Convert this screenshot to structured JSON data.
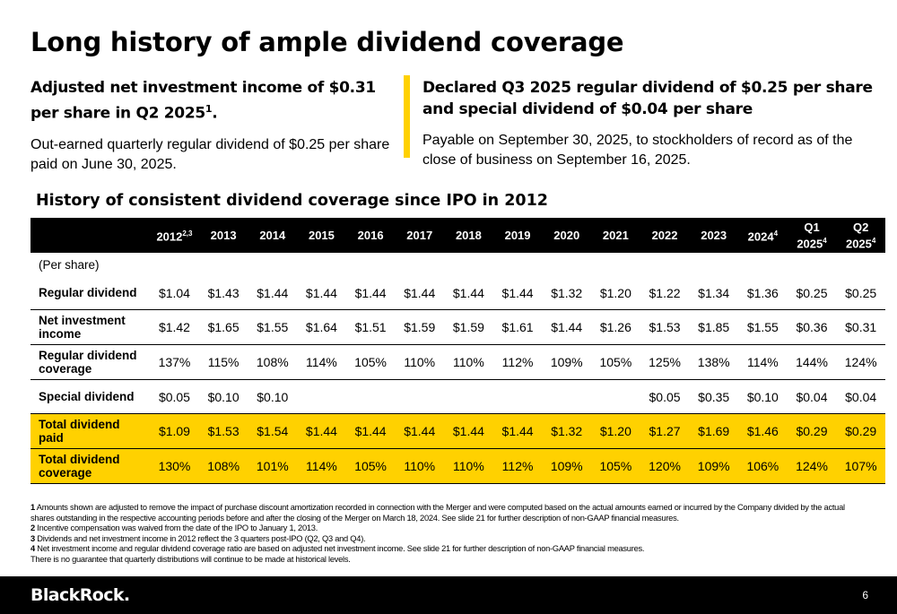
{
  "title": "Long history of ample dividend coverage",
  "left_callout": {
    "heading": "Adjusted net investment income of $0.31 per share in Q2 2025",
    "heading_sup": "1",
    "heading_end": ".",
    "body": "Out-earned quarterly regular dividend of $0.25 per share paid on June 30, 2025."
  },
  "right_callout": {
    "heading": "Declared Q3 2025 regular dividend of $0.25 per share and special dividend of $0.04 per share",
    "body": "Payable on September 30, 2025, to stockholders of record as of the close of business on September 16, 2025."
  },
  "section_title": "History of consistent dividend coverage since IPO in 2012",
  "table": {
    "columns": [
      {
        "label": "2012",
        "sup": "2,3"
      },
      {
        "label": "2013",
        "sup": ""
      },
      {
        "label": "2014",
        "sup": ""
      },
      {
        "label": "2015",
        "sup": ""
      },
      {
        "label": "2016",
        "sup": ""
      },
      {
        "label": "2017",
        "sup": ""
      },
      {
        "label": "2018",
        "sup": ""
      },
      {
        "label": "2019",
        "sup": ""
      },
      {
        "label": "2020",
        "sup": ""
      },
      {
        "label": "2021",
        "sup": ""
      },
      {
        "label": "2022",
        "sup": ""
      },
      {
        "label": "2023",
        "sup": ""
      },
      {
        "label": "2024",
        "sup": "4"
      },
      {
        "label": "Q1 2025",
        "sup": "4"
      },
      {
        "label": "Q2 2025",
        "sup": "4"
      }
    ],
    "unit_label": "(Per share)",
    "rows": [
      {
        "label": "Regular dividend",
        "highlight": false,
        "values": [
          "$1.04",
          "$1.43",
          "$1.44",
          "$1.44",
          "$1.44",
          "$1.44",
          "$1.44",
          "$1.44",
          "$1.32",
          "$1.20",
          "$1.22",
          "$1.34",
          "$1.36",
          "$0.25",
          "$0.25"
        ]
      },
      {
        "label": "Net investment income",
        "highlight": false,
        "values": [
          "$1.42",
          "$1.65",
          "$1.55",
          "$1.64",
          "$1.51",
          "$1.59",
          "$1.59",
          "$1.61",
          "$1.44",
          "$1.26",
          "$1.53",
          "$1.85",
          "$1.55",
          "$0.36",
          "$0.31"
        ]
      },
      {
        "label": "Regular dividend coverage",
        "highlight": false,
        "values": [
          "137%",
          "115%",
          "108%",
          "114%",
          "105%",
          "110%",
          "110%",
          "112%",
          "109%",
          "105%",
          "125%",
          "138%",
          "114%",
          "144%",
          "124%"
        ]
      },
      {
        "label": "Special dividend",
        "highlight": false,
        "values": [
          "$0.05",
          "$0.10",
          "$0.10",
          "",
          "",
          "",
          "",
          "",
          "",
          "",
          "$0.05",
          "$0.35",
          "$0.10",
          "$0.04",
          "$0.04"
        ]
      },
      {
        "label": "Total dividend paid",
        "highlight": true,
        "values": [
          "$1.09",
          "$1.53",
          "$1.54",
          "$1.44",
          "$1.44",
          "$1.44",
          "$1.44",
          "$1.44",
          "$1.32",
          "$1.20",
          "$1.27",
          "$1.69",
          "$1.46",
          "$0.29",
          "$0.29"
        ]
      },
      {
        "label": "Total dividend coverage",
        "highlight": true,
        "values": [
          "130%",
          "108%",
          "101%",
          "114%",
          "105%",
          "110%",
          "110%",
          "112%",
          "109%",
          "105%",
          "120%",
          "109%",
          "106%",
          "124%",
          "107%"
        ]
      }
    ]
  },
  "footnotes": [
    {
      "num": "1",
      "text": "Amounts shown are adjusted to remove the impact of purchase discount amortization recorded in connection with the Merger and were computed based on the actual amounts earned or incurred by the Company divided by the actual shares outstanding in the respective accounting periods before and after the closing of the Merger on March 18, 2024. See slide 21 for further description of non-GAAP financial measures."
    },
    {
      "num": "2",
      "text": "Incentive compensation was waived from the date of the IPO to January 1, 2013."
    },
    {
      "num": "3",
      "text": "Dividends and net investment income in 2012 reflect the 3 quarters post-IPO (Q2, Q3 and Q4)."
    },
    {
      "num": "4",
      "text": "Net investment income and regular dividend coverage ratio are based on adjusted net investment income. See slide 21 for further description of non-GAAP financial measures."
    },
    {
      "num": "",
      "text": "There is no guarantee that quarterly distributions will continue to be made at historical levels."
    }
  ],
  "footer": {
    "logo": "BlackRock.",
    "page_number": "6"
  },
  "colors": {
    "accent_yellow": "#ffd100",
    "header_black": "#000000"
  }
}
